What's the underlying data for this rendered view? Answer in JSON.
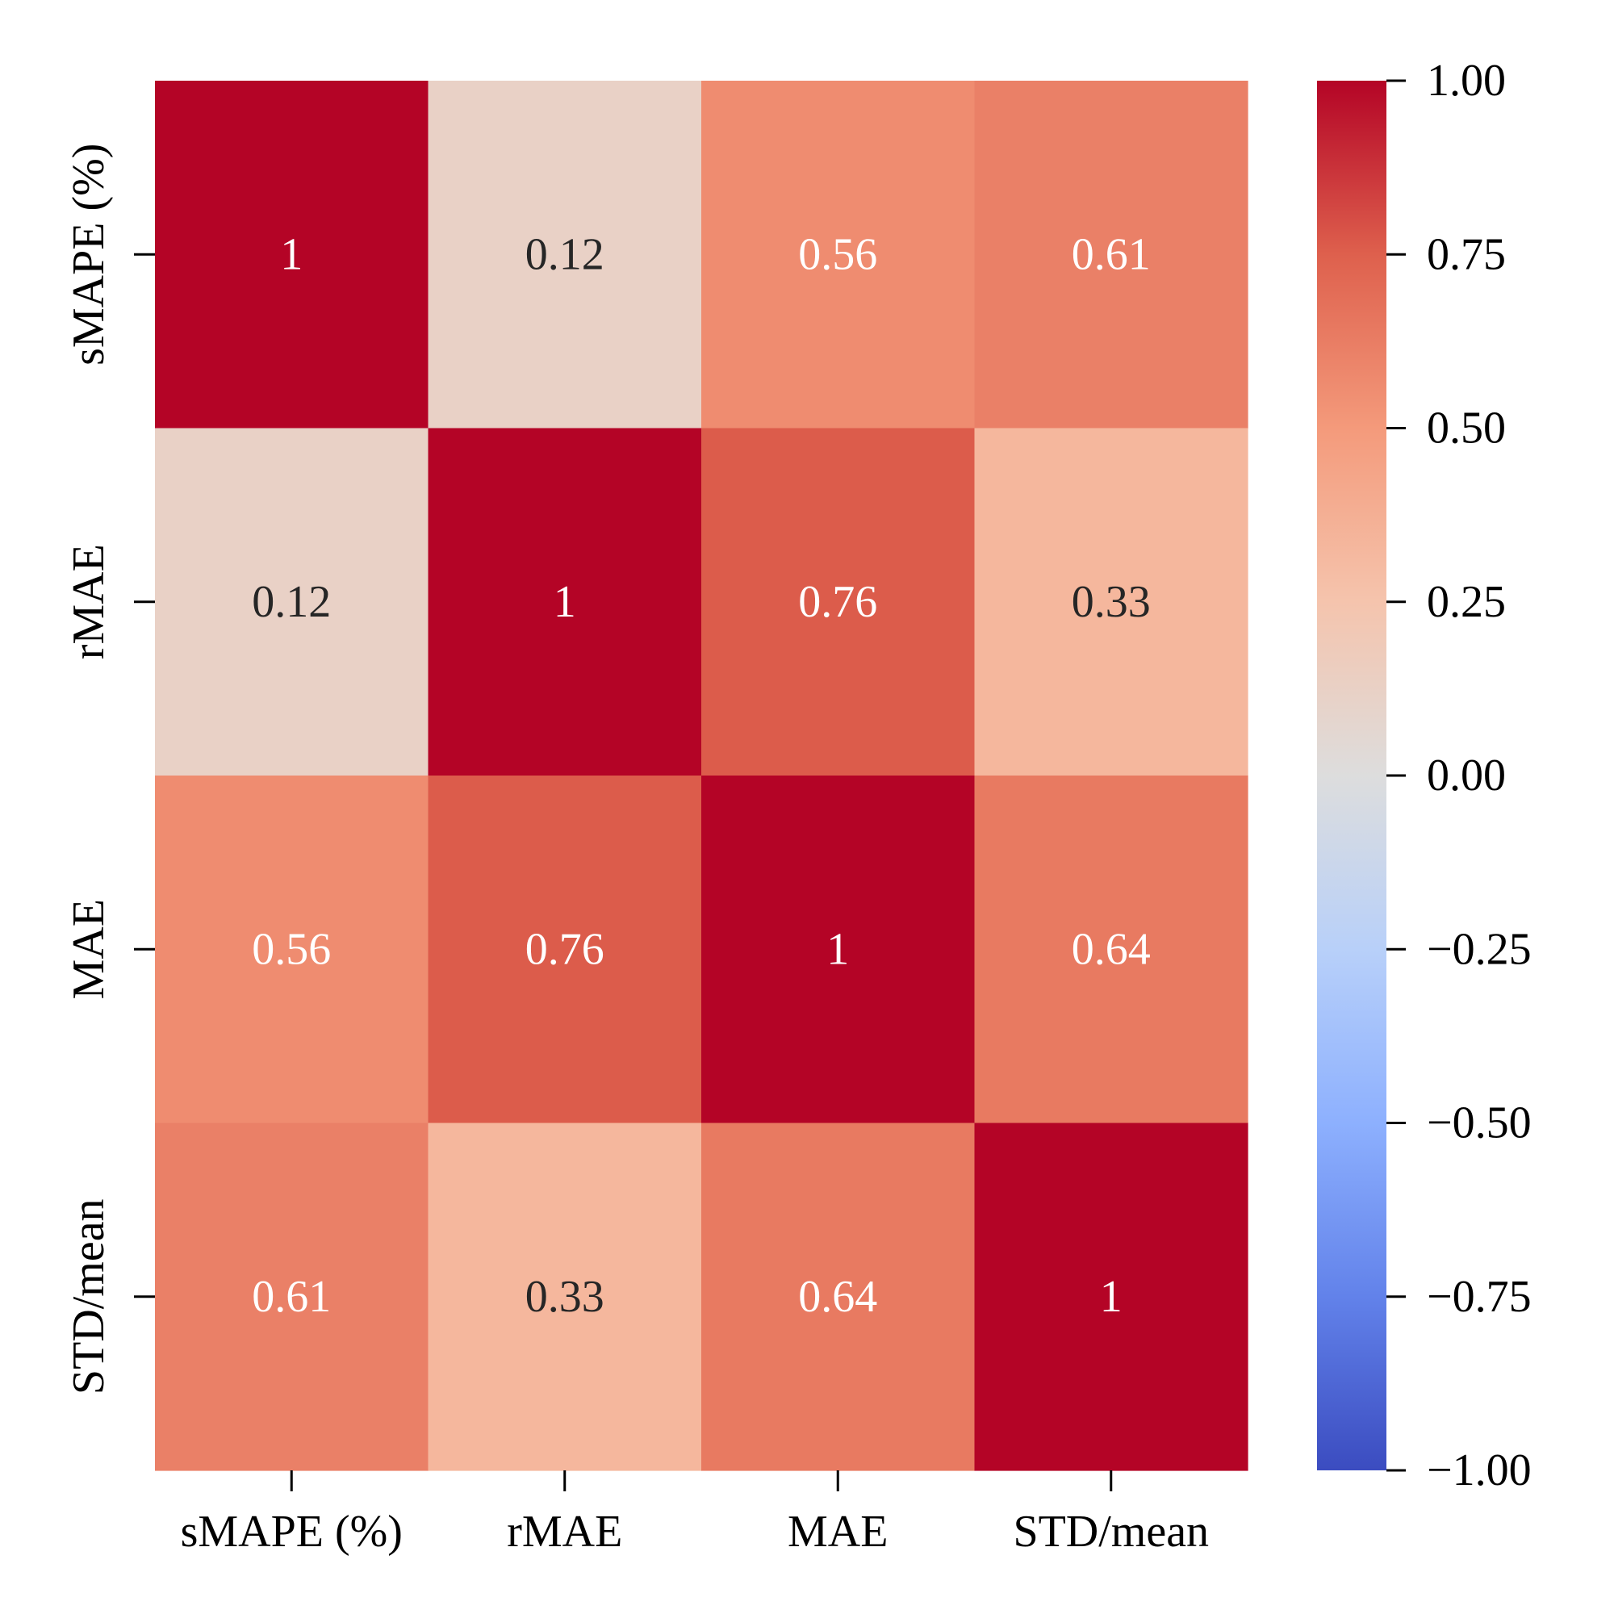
{
  "chart_data": {
    "type": "heatmap",
    "title": "",
    "xlabel": "",
    "ylabel": "",
    "row_labels": [
      "sMAPE (%)",
      "rMAE",
      "MAE",
      "STD/mean"
    ],
    "col_labels": [
      "sMAPE (%)",
      "rMAE",
      "MAE",
      "STD/mean"
    ],
    "values": [
      [
        1,
        0.12,
        0.56,
        0.61
      ],
      [
        0.12,
        1,
        0.76,
        0.33
      ],
      [
        0.56,
        0.76,
        1,
        0.64
      ],
      [
        0.61,
        0.33,
        0.64,
        1
      ]
    ],
    "annotations": [
      [
        "1",
        "0.12",
        "0.56",
        "0.61"
      ],
      [
        "0.12",
        "1",
        "0.76",
        "0.33"
      ],
      [
        "0.56",
        "0.76",
        "1",
        "0.64"
      ],
      [
        "0.61",
        "0.33",
        "0.64",
        "1"
      ]
    ],
    "colormap": "coolwarm",
    "vmin": -1,
    "vmax": 1,
    "colorbar_ticks": [
      1.0,
      0.75,
      0.5,
      0.25,
      0.0,
      -0.25,
      -0.5,
      -0.75,
      -1.0
    ],
    "colorbar_tick_labels": [
      "1.00",
      "0.75",
      "0.50",
      "0.25",
      "0.00",
      "−0.25",
      "−0.50",
      "−0.75",
      "−1.00"
    ],
    "colorbar_placement": "right"
  }
}
